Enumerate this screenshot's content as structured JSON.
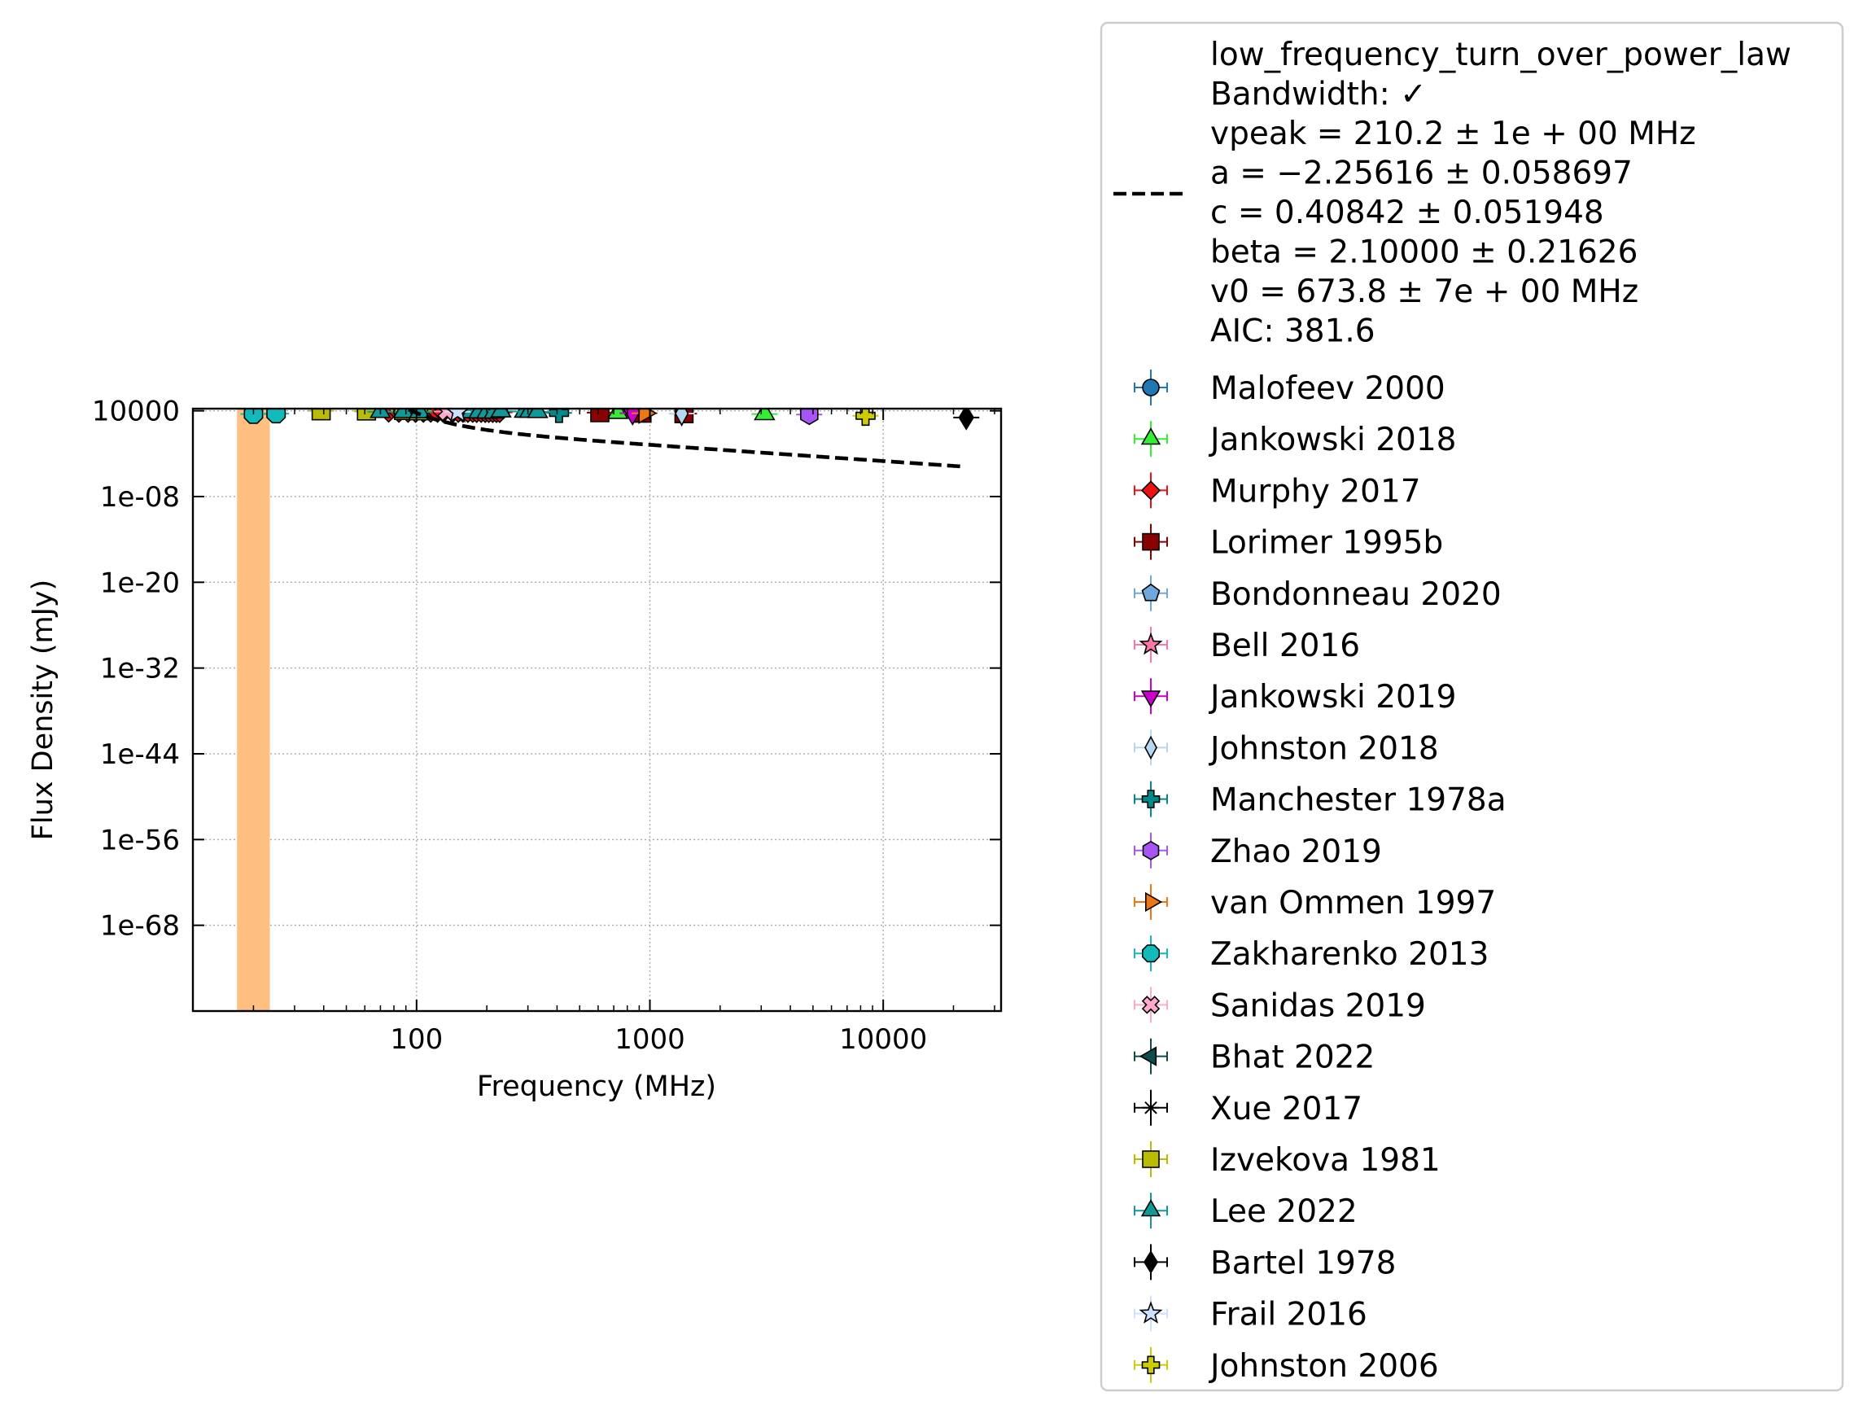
{
  "chart_data": {
    "type": "scatter",
    "xlabel": "Frequency (MHz)",
    "ylabel": "Flux Density (mJy)",
    "xscale": "log",
    "yscale": "log",
    "xlim": [
      11,
      32000
    ],
    "ylim_log10": [
      -80,
      4.3
    ],
    "x_ticks": [
      {
        "value": 100,
        "label": "100"
      },
      {
        "value": 1000,
        "label": "1000"
      },
      {
        "value": 10000,
        "label": "10000"
      }
    ],
    "y_ticks": [
      {
        "log10": 4,
        "label": "10000"
      },
      {
        "log10": -8,
        "label": "1e-08"
      },
      {
        "log10": -20,
        "label": "1e-20"
      },
      {
        "log10": -32,
        "label": "1e-32"
      },
      {
        "log10": -44,
        "label": "1e-44"
      },
      {
        "log10": -56,
        "label": "1e-56"
      },
      {
        "log10": -68,
        "label": "1e-68"
      }
    ],
    "grid": true,
    "legend_placement": "outside right",
    "fit": {
      "model": "low_frequency_turn_over_power_law",
      "lines": [
        "low_frequency_turn_over_power_law",
        "Bandwidth: ✓",
        "vpeak = 210.2 ± 1e + 00 MHz",
        "a = −2.25616 ± 0.058697",
        "c = 0.40842 ± 0.051948",
        "beta = 2.10000 ± 0.21626",
        "v0 = 673.8 ± 7e + 00 MHz",
        "AIC: 381.6"
      ],
      "vpeak": 210.2,
      "a": -2.25616,
      "c": 0.40842,
      "beta": 2.1,
      "v0": 673.8,
      "x_range": [
        17,
        22000
      ],
      "color": "#000000",
      "uncertainty_color": "#ffbf80"
    },
    "series": [
      {
        "name": "Malofeev 2000",
        "marker": "circle",
        "color": "#1f77b4",
        "points": []
      },
      {
        "name": "Jankowski 2018",
        "marker": "triangle-up",
        "color": "#33ee33",
        "points": [
          [
            728,
            3.73
          ],
          [
            3100,
            3.55
          ]
        ]
      },
      {
        "name": "Murphy 2017",
        "marker": "diamond",
        "color": "#ee1111",
        "points": [
          [
            76,
            3.82
          ],
          [
            84,
            3.8
          ],
          [
            92,
            3.8
          ],
          [
            99,
            3.79
          ],
          [
            107,
            3.8
          ],
          [
            115,
            3.81
          ],
          [
            123,
            3.8
          ],
          [
            130,
            3.8
          ],
          [
            143,
            3.79
          ],
          [
            151,
            3.79
          ],
          [
            158,
            3.8
          ],
          [
            166,
            3.79
          ],
          [
            174,
            3.79
          ],
          [
            181,
            3.78
          ],
          [
            189,
            3.79
          ],
          [
            197,
            3.78
          ],
          [
            204,
            3.78
          ],
          [
            212,
            3.78
          ],
          [
            220,
            3.77
          ],
          [
            227,
            3.78
          ]
        ]
      },
      {
        "name": "Lorimer 1995b",
        "marker": "square",
        "color": "#8b0000",
        "points": [
          [
            610,
            3.74
          ],
          [
            925,
            3.67
          ],
          [
            1400,
            3.6
          ]
        ]
      },
      {
        "name": "Bondonneau 2020",
        "marker": "pentagon",
        "color": "#6fa8dc",
        "points": [
          [
            62,
            3.9
          ]
        ]
      },
      {
        "name": "Bell 2016",
        "marker": "star",
        "color": "#ff77aa",
        "points": []
      },
      {
        "name": "Jankowski 2019",
        "marker": "triangle-down",
        "color": "#cc00cc",
        "points": [
          [
            843,
            3.66
          ]
        ]
      },
      {
        "name": "Johnston 2018",
        "marker": "thin-diamond",
        "color": "#b7d7f0",
        "points": [
          [
            1369,
            3.62
          ]
        ]
      },
      {
        "name": "Manchester 1978a",
        "marker": "plus",
        "color": "#008b8b",
        "points": [
          [
            408,
            3.7
          ]
        ]
      },
      {
        "name": "Zhao 2019",
        "marker": "hexagon",
        "color": "#a855f7",
        "points": [
          [
            4820,
            3.48
          ]
        ]
      },
      {
        "name": "van Ommen 1997",
        "marker": "triangle-right",
        "color": "#ee7711",
        "points": [
          [
            950,
            3.66
          ]
        ]
      },
      {
        "name": "Zakharenko 2013",
        "marker": "octagon",
        "color": "#11bbbb",
        "points": [
          [
            20,
            3.54
          ],
          [
            25,
            3.6
          ]
        ]
      },
      {
        "name": "Sanidas 2019",
        "marker": "x-filled",
        "color": "#ffaacc",
        "points": [
          [
            135,
            3.9
          ]
        ]
      },
      {
        "name": "Bhat 2022",
        "marker": "triangle-left",
        "color": "#0d4d4d",
        "points": []
      },
      {
        "name": "Xue 2017",
        "marker": "asterisk",
        "color": "#000000",
        "points": []
      },
      {
        "name": "Izvekova 1981",
        "marker": "square",
        "color": "#bbbb00",
        "points": [
          [
            39,
            4.0
          ],
          [
            61,
            3.98
          ],
          [
            88,
            4.05
          ],
          [
            102,
            4.0
          ]
        ]
      },
      {
        "name": "Lee 2022",
        "marker": "triangle-up",
        "color": "#119999",
        "points": [
          [
            70,
            3.86
          ],
          [
            88,
            3.85
          ],
          [
            103,
            3.83
          ],
          [
            172,
            3.82
          ],
          [
            185,
            3.8
          ],
          [
            200,
            3.78
          ],
          [
            215,
            3.77
          ],
          [
            230,
            3.93
          ],
          [
            290,
            3.9
          ],
          [
            305,
            3.87
          ],
          [
            330,
            3.85
          ]
        ]
      },
      {
        "name": "Bartel 1978",
        "marker": "thick-diamond",
        "color": "#000000",
        "points": [
          [
            22700,
            3.06
          ]
        ]
      },
      {
        "name": "Frail 2016",
        "marker": "star",
        "color": "#cce0ff",
        "points": [
          [
            150,
            3.86
          ]
        ]
      },
      {
        "name": "Johnston 2006",
        "marker": "plus",
        "color": "#cccc00",
        "points": [
          [
            8400,
            3.3
          ]
        ]
      }
    ]
  }
}
